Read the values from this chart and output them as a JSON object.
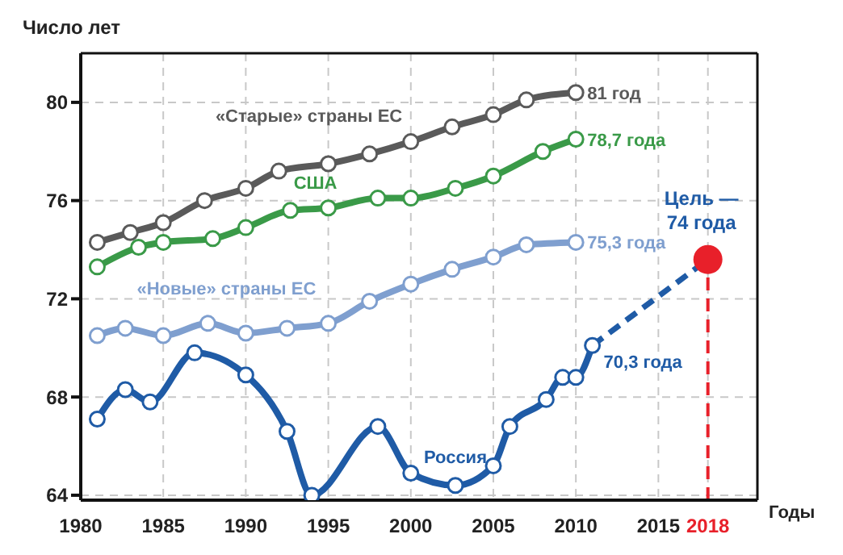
{
  "chart_data": {
    "type": "line",
    "ylabel": "Число лет",
    "xlabel": "Годы",
    "xlim": [
      1980,
      2021
    ],
    "xticks": [
      1980,
      1985,
      1990,
      1995,
      2000,
      2005,
      2010,
      2015,
      2018
    ],
    "ylim": [
      63.8,
      82
    ],
    "yticks": [
      64,
      68,
      72,
      76,
      80
    ],
    "grid": true,
    "legend": false,
    "marker": "circle",
    "series": [
      {
        "name": "«Старые» страны ЕС",
        "color": "#5a5a5a",
        "x": [
          1981,
          1983,
          1985,
          1987.5,
          1990,
          1992,
          1995,
          1997.5,
          2000,
          2002.5,
          2005,
          2007,
          2010
        ],
        "values": [
          74.3,
          74.7,
          75.1,
          76.0,
          76.5,
          77.2,
          77.5,
          77.9,
          78.4,
          79.0,
          79.5,
          80.1,
          80.4
        ]
      },
      {
        "name": "США",
        "color": "#3a9a48",
        "x": [
          1981,
          1983.5,
          1985,
          1988,
          1990,
          1992.7,
          1995,
          1998,
          2000,
          2002.7,
          2005,
          2008,
          2010
        ],
        "values": [
          73.3,
          74.1,
          74.3,
          74.45,
          74.9,
          75.6,
          75.7,
          76.1,
          76.1,
          76.5,
          77.0,
          78.0,
          78.5
        ]
      },
      {
        "name": "«Новые» страны ЕС",
        "color": "#7f9fcf",
        "x": [
          1981,
          1982.7,
          1985,
          1987.7,
          1990,
          1992.5,
          1995,
          1997.5,
          2000,
          2002.5,
          2005,
          2007,
          2010
        ],
        "values": [
          70.5,
          70.8,
          70.5,
          71.0,
          70.6,
          70.8,
          71.0,
          71.9,
          72.6,
          73.2,
          73.7,
          74.2,
          74.3
        ]
      },
      {
        "name": "Россия",
        "color": "#1f5ba6",
        "x": [
          1981,
          1982.7,
          1984.2,
          1986.9,
          1990,
          1992.5,
          1994,
          1998,
          2000,
          2002.7,
          2005,
          2006,
          2008.2,
          2009.2,
          2010,
          2011
        ],
        "values": [
          67.1,
          68.3,
          67.8,
          69.8,
          68.9,
          66.6,
          64.0,
          66.8,
          64.9,
          64.4,
          65.2,
          66.8,
          67.9,
          68.8,
          68.8,
          70.1
        ]
      },
      {
        "type": "line",
        "color": "#1f5ba6",
        "line_style": "dashed",
        "marker": "none",
        "x": [
          2011,
          2018
        ],
        "values": [
          70.1,
          73.6
        ]
      },
      {
        "type": "scatter",
        "color": "#e8202a",
        "x": [
          2018
        ],
        "values": [
          73.6
        ]
      }
    ],
    "ref_lines": [
      {
        "axis": "x",
        "value": 2018,
        "color": "#e8202a",
        "line_style": "dashed"
      }
    ],
    "annotations": [
      {
        "text": "81 год",
        "x": 2010,
        "y": 80.4
      },
      {
        "text": "78,7 года",
        "x": 2010,
        "y": 78.5
      },
      {
        "text": "75,3 года",
        "x": 2010,
        "y": 74.3
      },
      {
        "text": "70,3 года",
        "x": 2011,
        "y": 70.1
      },
      {
        "text": "Цель — 74 года",
        "x": 2018,
        "y": 73.6
      }
    ]
  }
}
